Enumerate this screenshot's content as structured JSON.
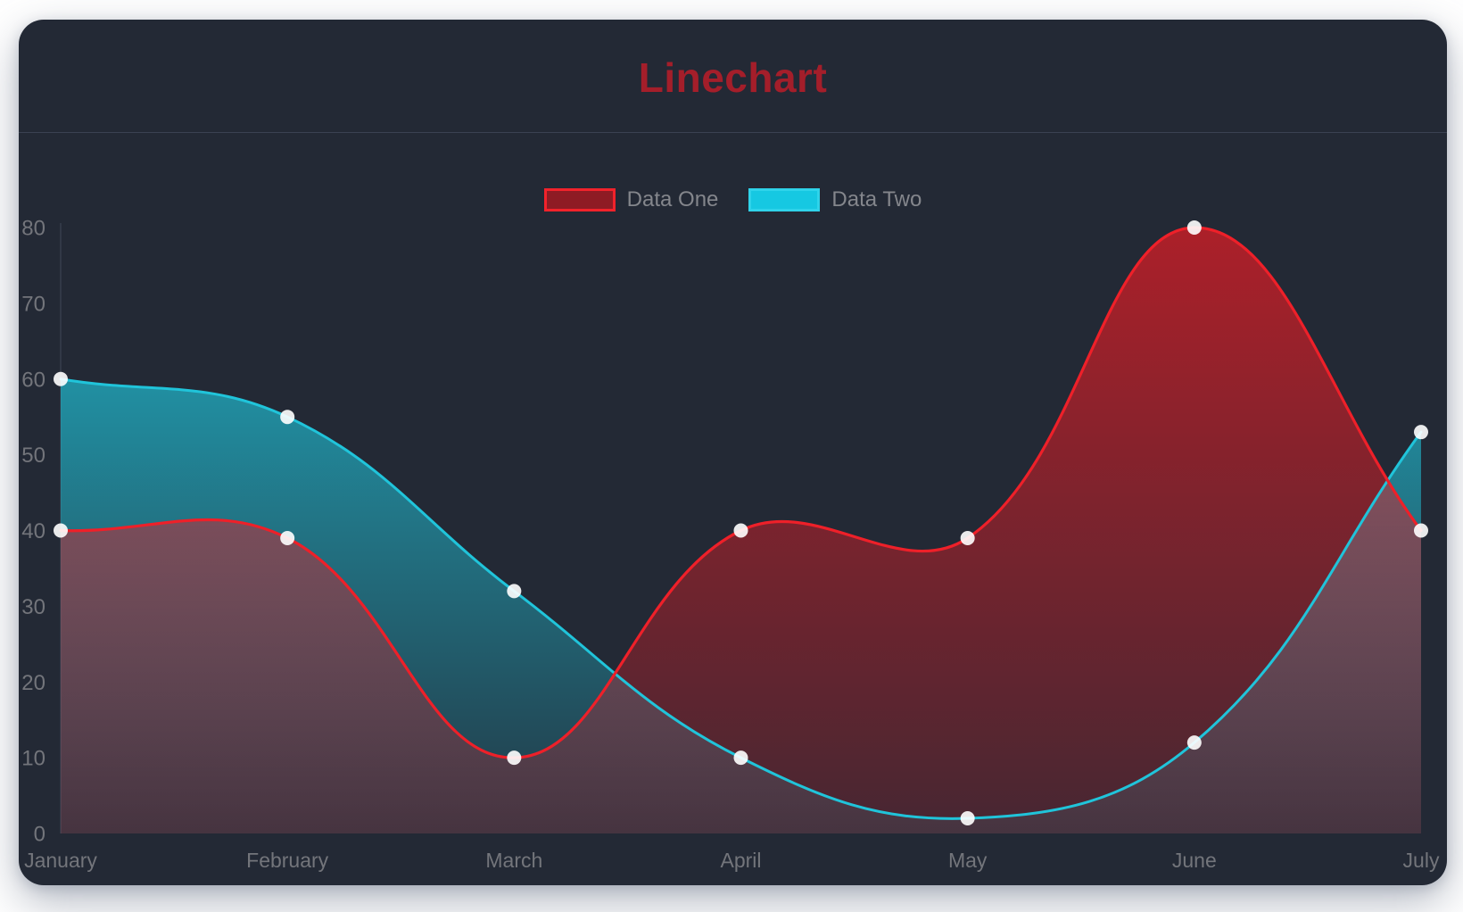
{
  "page": {
    "background_color": "#ffffff"
  },
  "card": {
    "background_color": "#232935"
  },
  "chart_data": {
    "type": "line",
    "title": "Linechart",
    "title_color": "#a41e2a",
    "categories": [
      "January",
      "February",
      "March",
      "April",
      "May",
      "June",
      "July"
    ],
    "series": [
      {
        "name": "Data One",
        "values": [
          40,
          39,
          10,
          40,
          39,
          80,
          40
        ],
        "line_color": "#ee2029",
        "fill_rgb": "230,28,36",
        "legend_swatch_fill": "#8e1b24",
        "legend_swatch_border": "#f2222b"
      },
      {
        "name": "Data Two",
        "values": [
          60,
          55,
          32,
          10,
          2,
          12,
          53
        ],
        "line_color": "#20c4da",
        "fill_rgb": "32,196,218",
        "legend_swatch_fill": "#16c8e2",
        "legend_swatch_border": "#2fd3ea"
      }
    ],
    "ylim": [
      0,
      80
    ],
    "yticks": [
      0,
      10,
      20,
      30,
      40,
      50,
      60,
      70,
      80
    ],
    "xlabel": "",
    "ylabel": "",
    "grid": false,
    "legend_position": "top",
    "tension": 0.4,
    "point_color": "rgba(255,255,255,0.9)",
    "axis_label_color": "#73757b",
    "axis_line_color": "#363d4c"
  }
}
